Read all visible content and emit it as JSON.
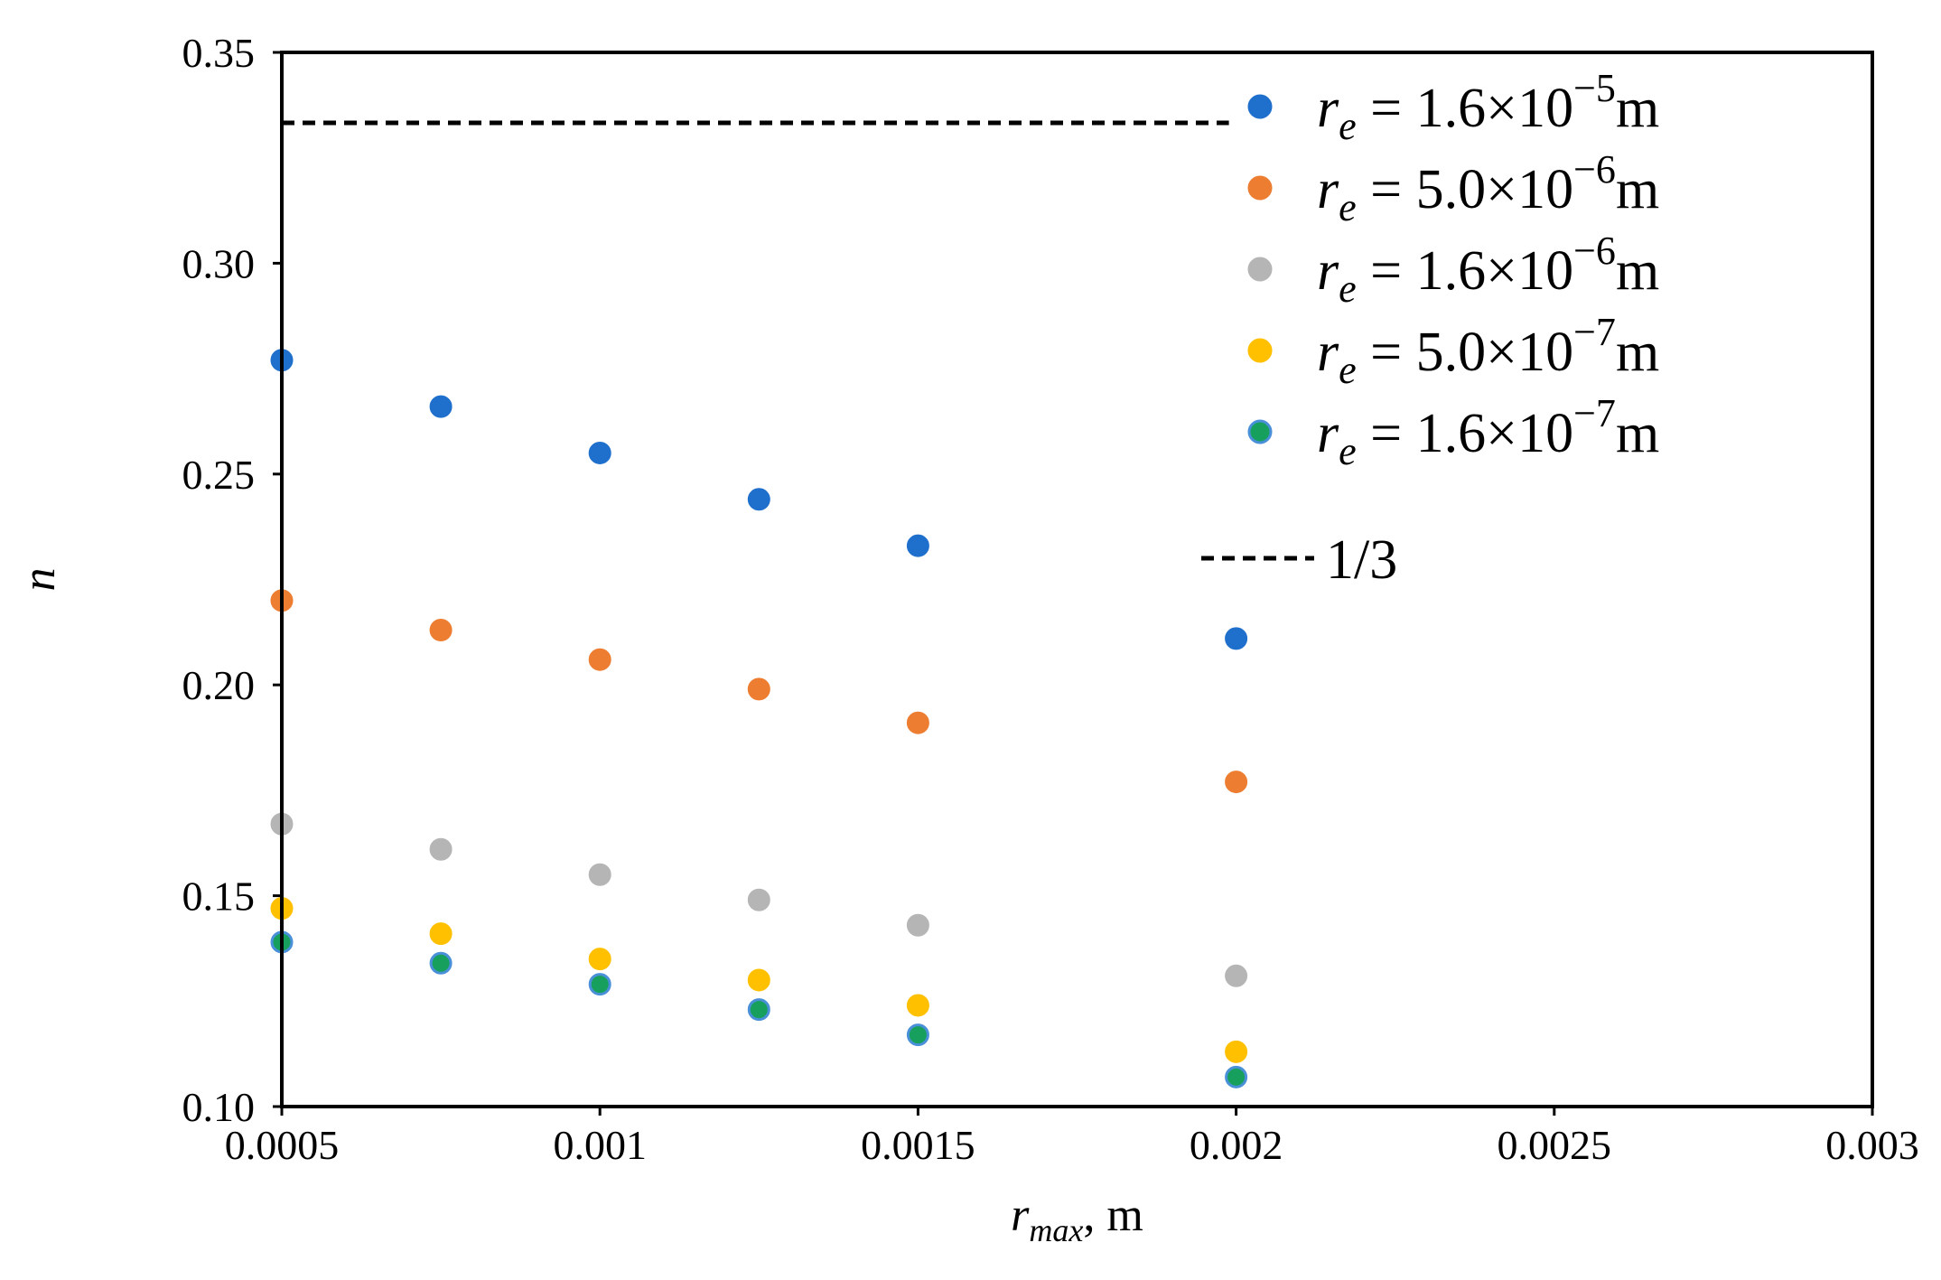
{
  "chart_data": {
    "type": "scatter",
    "title": "",
    "xlabel": {
      "var": "r",
      "sub": "max",
      "unit": ", m"
    },
    "ylabel": "n",
    "xlim": [
      0.0005,
      0.003
    ],
    "ylim": [
      0.1,
      0.35
    ],
    "xticks": [
      "0.0005",
      "0.001",
      "0.0015",
      "0.002",
      "0.0025",
      "0.003"
    ],
    "xtick_values": [
      0.0005,
      0.001,
      0.0015,
      0.002,
      0.0025,
      0.003
    ],
    "yticks": [
      "0.10",
      "0.15",
      "0.20",
      "0.25",
      "0.30",
      "0.35"
    ],
    "ytick_values": [
      0.1,
      0.15,
      0.2,
      0.25,
      0.3,
      0.35
    ],
    "grid": false,
    "legend_position": "top-right",
    "x": [
      0.0005,
      0.00075,
      0.001,
      0.00125,
      0.0015,
      0.002
    ],
    "series": [
      {
        "name": "r_e = 1.6×10^-5 m",
        "sym": "r",
        "sub": "e",
        "eq": " = ",
        "mant": "1.6×10",
        "exp": "−5",
        "unit": "m",
        "color": "#1f6fcc",
        "values": [
          0.277,
          0.266,
          0.255,
          0.244,
          0.233,
          0.211
        ]
      },
      {
        "name": "r_e = 5.0×10^-6 m",
        "sym": "r",
        "sub": "e",
        "eq": " = ",
        "mant": "5.0×10",
        "exp": "−6",
        "unit": "m",
        "color": "#ed7d31",
        "values": [
          0.22,
          0.213,
          0.206,
          0.199,
          0.191,
          0.177
        ]
      },
      {
        "name": "r_e = 1.6×10^-6 m",
        "sym": "r",
        "sub": "e",
        "eq": " = ",
        "mant": "1.6×10",
        "exp": "−6",
        "unit": "m",
        "color": "#b5b5b5",
        "values": [
          0.167,
          0.161,
          0.155,
          0.149,
          0.143,
          0.131
        ]
      },
      {
        "name": "r_e = 5.0×10^-7 m",
        "sym": "r",
        "sub": "e",
        "eq": " = ",
        "mant": "5.0×10",
        "exp": "−7",
        "unit": "m",
        "color": "#ffc000",
        "values": [
          0.147,
          0.141,
          0.135,
          0.13,
          0.124,
          0.113
        ]
      },
      {
        "name": "r_e = 1.6×10^-7 m",
        "sym": "r",
        "sub": "e",
        "eq": " = ",
        "mant": "1.6×10",
        "exp": "−7",
        "unit": "m",
        "color": "#17a05d",
        "edge_color": "#4a90d9",
        "values": [
          0.139,
          0.134,
          0.129,
          0.123,
          0.117,
          0.107
        ]
      }
    ],
    "reference_line": {
      "name": "1/3",
      "y": 0.3333,
      "x_range": [
        0.0005,
        0.002
      ],
      "color": "#000000",
      "style": "dashed"
    }
  }
}
